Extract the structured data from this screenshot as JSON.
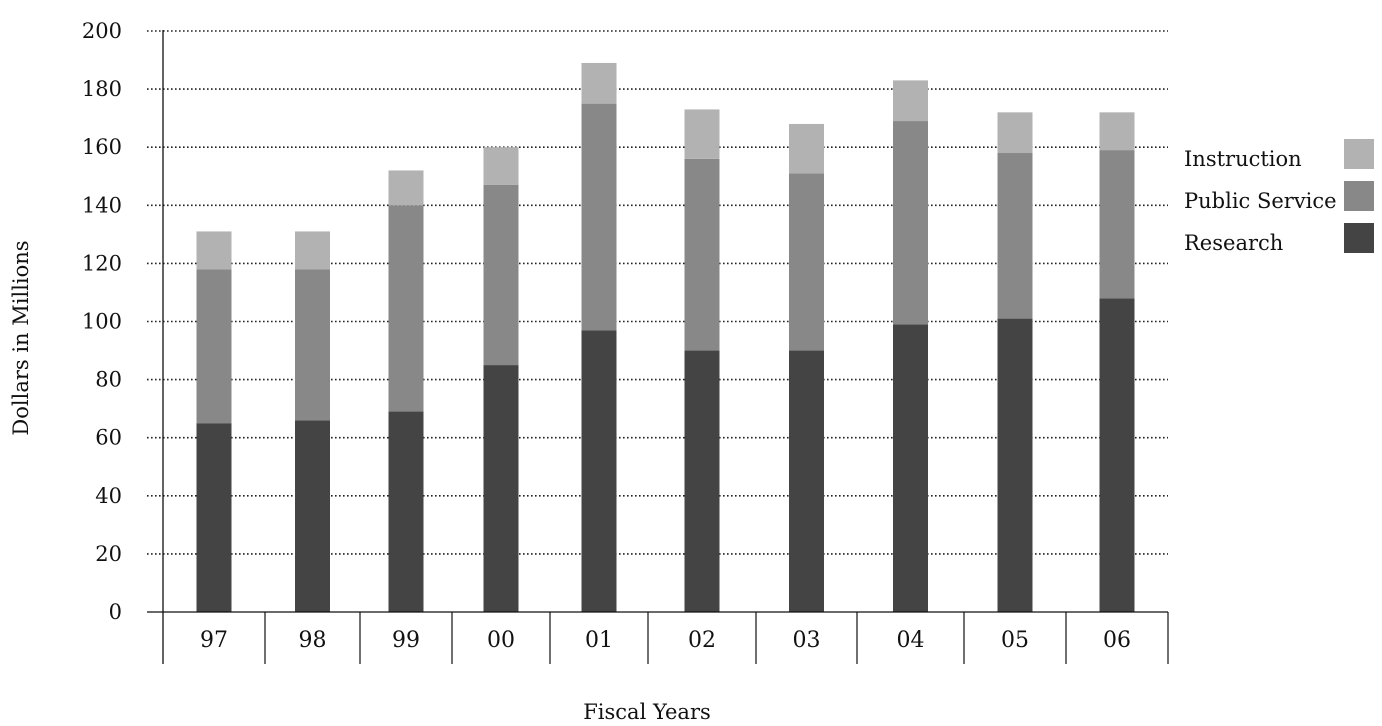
{
  "chart_data": {
    "type": "bar",
    "stacked": true,
    "title": "",
    "xlabel": "Fiscal Years",
    "ylabel": "Dollars in Millions",
    "ylim": [
      0,
      200
    ],
    "yticks": [
      0,
      20,
      40,
      60,
      80,
      100,
      120,
      140,
      160,
      180,
      200
    ],
    "categories": [
      "97",
      "98",
      "99",
      "00",
      "01",
      "02",
      "03",
      "04",
      "05",
      "06"
    ],
    "series": [
      {
        "name": "Research",
        "color": "#444444",
        "values": [
          65,
          66,
          69,
          85,
          97,
          90,
          90,
          99,
          101,
          108
        ]
      },
      {
        "name": "Public Service",
        "color": "#888888",
        "values": [
          53,
          52,
          71,
          62,
          78,
          66,
          61,
          70,
          57,
          51
        ]
      },
      {
        "name": "Instruction",
        "color": "#b2b2b2",
        "values": [
          13,
          13,
          12,
          13,
          14,
          17,
          17,
          14,
          14,
          13
        ]
      }
    ],
    "grid": "horizontal-dotted",
    "legend": {
      "position": "right",
      "order": [
        "Instruction",
        "Public Service",
        "Research"
      ]
    }
  }
}
